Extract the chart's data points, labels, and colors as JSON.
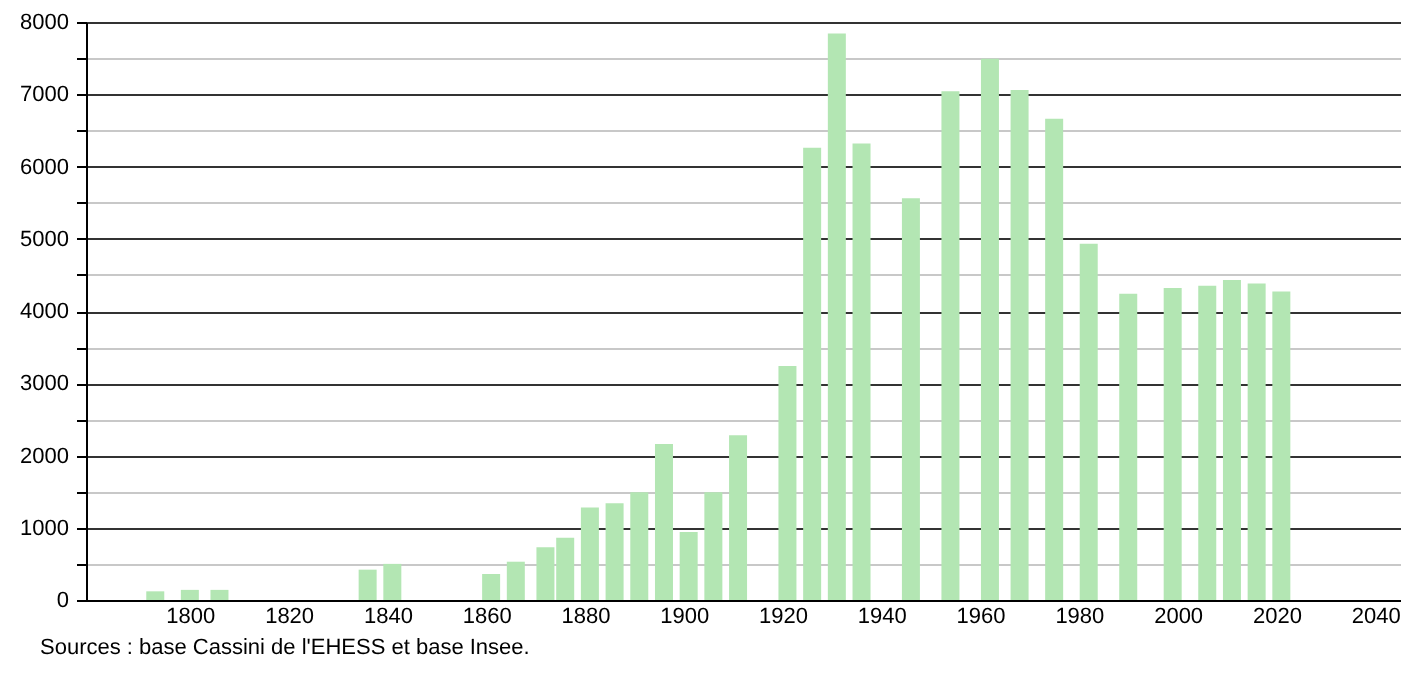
{
  "chart_data": {
    "type": "bar",
    "x": [
      1793,
      1800,
      1806,
      1836,
      1841,
      1861,
      1866,
      1872,
      1876,
      1881,
      1886,
      1891,
      1896,
      1901,
      1906,
      1911,
      1921,
      1926,
      1931,
      1936,
      1946,
      1954,
      1962,
      1968,
      1975,
      1982,
      1990,
      1999,
      2006,
      2011,
      2016,
      2021
    ],
    "values": [
      120,
      140,
      140,
      420,
      500,
      360,
      530,
      730,
      860,
      1280,
      1340,
      1490,
      2160,
      940,
      1490,
      2280,
      3240,
      6260,
      7840,
      6320,
      5560,
      7040,
      7490,
      7060,
      6660,
      4930,
      4240,
      4320,
      4350,
      4430,
      4380,
      4270
    ],
    "color": "#b3e6b3",
    "xlim": [
      1781,
      2043
    ],
    "xticks": [
      1800,
      1820,
      1840,
      1860,
      1880,
      1900,
      1920,
      1940,
      1960,
      1980,
      2000,
      2020,
      2040
    ],
    "ylim": [
      0,
      8000
    ],
    "yticks": [
      0,
      {
        "value": 500,
        "label": null
      },
      1000,
      {
        "value": 1500,
        "label": null
      },
      2000,
      {
        "value": 2500,
        "label": null
      },
      3000,
      {
        "value": 3500,
        "label": null
      },
      4000,
      {
        "value": 4500,
        "label": null
      },
      5000,
      {
        "value": 5500,
        "label": null
      },
      6000,
      {
        "value": 6500,
        "label": null
      },
      7000,
      {
        "value": 7500,
        "label": null
      },
      8000
    ],
    "grid": "y",
    "annotations": [
      "Sources : base Cassini de l'EHESS et base Insee."
    ]
  }
}
